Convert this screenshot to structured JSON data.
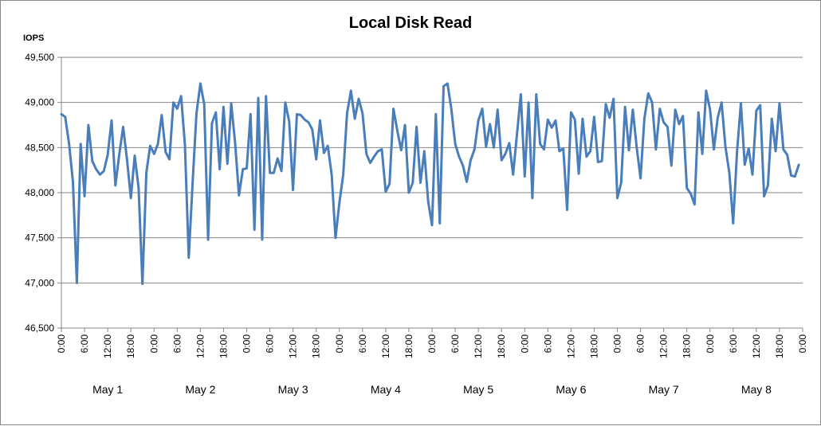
{
  "chart_data": {
    "type": "line",
    "title": "Local Disk Read",
    "ylabel": "IOPS",
    "xlabel": "",
    "ylim": [
      46500,
      49500
    ],
    "yticks": [
      "46,500",
      "47,000",
      "47,500",
      "48,000",
      "48,500",
      "49,000",
      "49,500"
    ],
    "ytick_values": [
      46500,
      47000,
      47500,
      48000,
      48500,
      49000,
      49500
    ],
    "grid": "horizontal",
    "legend": "none",
    "x_tick_labels": [
      "0:00",
      "6:00",
      "12:00",
      "18:00",
      "0:00",
      "6:00",
      "12:00",
      "18:00",
      "0:00",
      "6:00",
      "12:00",
      "18:00",
      "0:00",
      "6:00",
      "12:00",
      "18:00",
      "0:00",
      "6:00",
      "12:00",
      "18:00",
      "0:00",
      "6:00",
      "12:00",
      "18:00",
      "0:00",
      "6:00",
      "12:00",
      "18:00",
      "0:00",
      "6:00",
      "12:00",
      "18:00",
      "0:00"
    ],
    "day_labels": [
      "May 1",
      "May 2",
      "May 3",
      "May 4",
      "May 5",
      "May 6",
      "May 7",
      "May 8"
    ],
    "x_unit": "hours since May 1 0:00",
    "series": [
      {
        "color": "#4a7ebb",
        "points": [
          [
            0,
            48870
          ],
          [
            1,
            48840
          ],
          [
            2,
            48540
          ],
          [
            3,
            48120
          ],
          [
            4,
            47000
          ],
          [
            5,
            48540
          ],
          [
            6,
            47960
          ],
          [
            7,
            48750
          ],
          [
            8,
            48350
          ],
          [
            9,
            48260
          ],
          [
            10,
            48200
          ],
          [
            11,
            48240
          ],
          [
            12,
            48420
          ],
          [
            13,
            48800
          ],
          [
            14,
            48080
          ],
          [
            15,
            48430
          ],
          [
            16,
            48730
          ],
          [
            17,
            48370
          ],
          [
            18,
            47940
          ],
          [
            19,
            48410
          ],
          [
            20,
            48050
          ],
          [
            21,
            46990
          ],
          [
            22,
            48220
          ],
          [
            23,
            48520
          ],
          [
            24,
            48430
          ],
          [
            25,
            48540
          ],
          [
            26,
            48860
          ],
          [
            27,
            48450
          ],
          [
            28,
            48370
          ],
          [
            29,
            49000
          ],
          [
            30,
            48930
          ],
          [
            31,
            49070
          ],
          [
            32,
            48530
          ],
          [
            33,
            47280
          ],
          [
            34,
            48120
          ],
          [
            35,
            48880
          ],
          [
            36,
            49210
          ],
          [
            37,
            48980
          ],
          [
            38,
            47480
          ],
          [
            39,
            48770
          ],
          [
            40,
            48890
          ],
          [
            41,
            48260
          ],
          [
            42,
            48950
          ],
          [
            43,
            48320
          ],
          [
            44,
            48990
          ],
          [
            45,
            48550
          ],
          [
            46,
            47970
          ],
          [
            47,
            48260
          ],
          [
            48,
            48270
          ],
          [
            49,
            48870
          ],
          [
            50,
            47590
          ],
          [
            51,
            49050
          ],
          [
            52,
            47480
          ],
          [
            53,
            49070
          ],
          [
            54,
            48220
          ],
          [
            55,
            48220
          ],
          [
            56,
            48380
          ],
          [
            57,
            48240
          ],
          [
            58,
            49000
          ],
          [
            59,
            48790
          ],
          [
            60,
            48030
          ],
          [
            61,
            48870
          ],
          [
            62,
            48860
          ],
          [
            63,
            48810
          ],
          [
            64,
            48780
          ],
          [
            65,
            48700
          ],
          [
            66,
            48370
          ],
          [
            67,
            48800
          ],
          [
            68,
            48440
          ],
          [
            69,
            48520
          ],
          [
            70,
            48200
          ],
          [
            71,
            47500
          ],
          [
            72,
            47890
          ],
          [
            73,
            48200
          ],
          [
            74,
            48880
          ],
          [
            75,
            49130
          ],
          [
            76,
            48820
          ],
          [
            77,
            49040
          ],
          [
            78,
            48880
          ],
          [
            79,
            48430
          ],
          [
            80,
            48330
          ],
          [
            81,
            48400
          ],
          [
            82,
            48460
          ],
          [
            83,
            48480
          ],
          [
            84,
            48010
          ],
          [
            85,
            48100
          ],
          [
            86,
            48930
          ],
          [
            87,
            48690
          ],
          [
            88,
            48470
          ],
          [
            89,
            48750
          ],
          [
            90,
            48000
          ],
          [
            91,
            48110
          ],
          [
            92,
            48730
          ],
          [
            93,
            48110
          ],
          [
            94,
            48460
          ],
          [
            95,
            47900
          ],
          [
            96,
            47640
          ],
          [
            97,
            48870
          ],
          [
            98,
            47660
          ],
          [
            99,
            49180
          ],
          [
            100,
            49210
          ],
          [
            101,
            48930
          ],
          [
            102,
            48540
          ],
          [
            103,
            48400
          ],
          [
            104,
            48300
          ],
          [
            105,
            48120
          ],
          [
            106,
            48360
          ],
          [
            107,
            48480
          ],
          [
            108,
            48800
          ],
          [
            109,
            48930
          ],
          [
            110,
            48510
          ],
          [
            111,
            48760
          ],
          [
            112,
            48500
          ],
          [
            113,
            48920
          ],
          [
            114,
            48360
          ],
          [
            115,
            48430
          ],
          [
            116,
            48550
          ],
          [
            117,
            48200
          ],
          [
            118,
            48650
          ],
          [
            119,
            49090
          ],
          [
            120,
            48180
          ],
          [
            121,
            49000
          ],
          [
            122,
            47940
          ],
          [
            123,
            49090
          ],
          [
            124,
            48540
          ],
          [
            125,
            48480
          ],
          [
            126,
            48810
          ],
          [
            127,
            48720
          ],
          [
            128,
            48800
          ],
          [
            129,
            48460
          ],
          [
            130,
            48490
          ],
          [
            131,
            47810
          ],
          [
            132,
            48890
          ],
          [
            133,
            48810
          ],
          [
            134,
            48210
          ],
          [
            135,
            48820
          ],
          [
            136,
            48400
          ],
          [
            137,
            48460
          ],
          [
            138,
            48840
          ],
          [
            139,
            48340
          ],
          [
            140,
            48350
          ],
          [
            141,
            48980
          ],
          [
            142,
            48830
          ],
          [
            143,
            49040
          ],
          [
            144,
            47940
          ],
          [
            145,
            48110
          ],
          [
            146,
            48950
          ],
          [
            147,
            48470
          ],
          [
            148,
            48920
          ],
          [
            149,
            48510
          ],
          [
            150,
            48160
          ],
          [
            151,
            48820
          ],
          [
            152,
            49100
          ],
          [
            153,
            49000
          ],
          [
            154,
            48480
          ],
          [
            155,
            48930
          ],
          [
            156,
            48780
          ],
          [
            157,
            48730
          ],
          [
            158,
            48300
          ],
          [
            159,
            48920
          ],
          [
            160,
            48760
          ],
          [
            161,
            48850
          ],
          [
            162,
            48050
          ],
          [
            163,
            47990
          ],
          [
            164,
            47870
          ],
          [
            165,
            48890
          ],
          [
            166,
            48430
          ],
          [
            167,
            49130
          ],
          [
            168,
            48920
          ],
          [
            169,
            48480
          ],
          [
            170,
            48830
          ],
          [
            171,
            49000
          ],
          [
            172,
            48510
          ],
          [
            173,
            48220
          ],
          [
            174,
            47660
          ],
          [
            175,
            48460
          ],
          [
            176,
            48990
          ],
          [
            177,
            48310
          ],
          [
            178,
            48490
          ],
          [
            179,
            48200
          ],
          [
            180,
            48910
          ],
          [
            181,
            48970
          ],
          [
            182,
            47960
          ],
          [
            183,
            48080
          ],
          [
            184,
            48820
          ],
          [
            185,
            48460
          ],
          [
            186,
            48990
          ],
          [
            187,
            48480
          ],
          [
            188,
            48420
          ],
          [
            189,
            48190
          ],
          [
            190,
            48180
          ],
          [
            191,
            48310
          ]
        ]
      }
    ]
  }
}
